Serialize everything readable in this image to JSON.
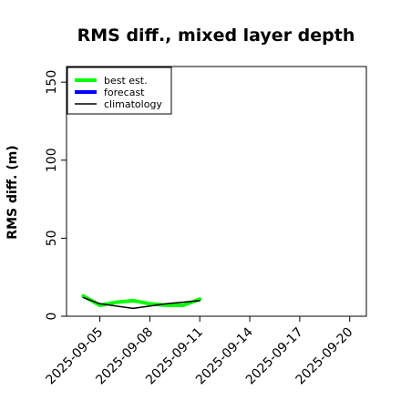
{
  "chart_data": {
    "type": "line",
    "title": "RMS diff., mixed layer depth",
    "xlabel": "",
    "ylabel": "RMS diff. (m)",
    "ylim": [
      0,
      160
    ],
    "yticks": [
      0,
      50,
      100,
      150
    ],
    "xlim": [
      "2025-09-03",
      "2025-09-21"
    ],
    "xticks": [
      {
        "label": "2025-09-05",
        "color": "#000000"
      },
      {
        "label": "2025-09-08",
        "color": "#000000"
      },
      {
        "label": "2025-09-11",
        "color": "#228b22"
      },
      {
        "label": "2025-09-14",
        "color": "#000000"
      },
      {
        "label": "2025-09-17",
        "color": "#000000"
      },
      {
        "label": "2025-09-20",
        "color": "#000000"
      }
    ],
    "grid": false,
    "legend_position": "top-left",
    "series": [
      {
        "name": "best est.",
        "color": "#00ff00",
        "x": [
          "2025-09-04",
          "2025-09-05",
          "2025-09-06",
          "2025-09-07",
          "2025-09-08",
          "2025-09-09",
          "2025-09-10",
          "2025-09-11"
        ],
        "values": [
          13,
          7,
          9,
          10,
          8,
          7,
          7,
          11
        ]
      },
      {
        "name": "forecast",
        "color": "#0000ff",
        "x": [],
        "values": []
      },
      {
        "name": "climatology",
        "color": "#000000",
        "x": [
          "2025-09-04",
          "2025-09-05",
          "2025-09-07",
          "2025-09-09",
          "2025-09-11"
        ],
        "values": [
          12,
          8,
          5,
          8,
          10
        ]
      }
    ]
  }
}
